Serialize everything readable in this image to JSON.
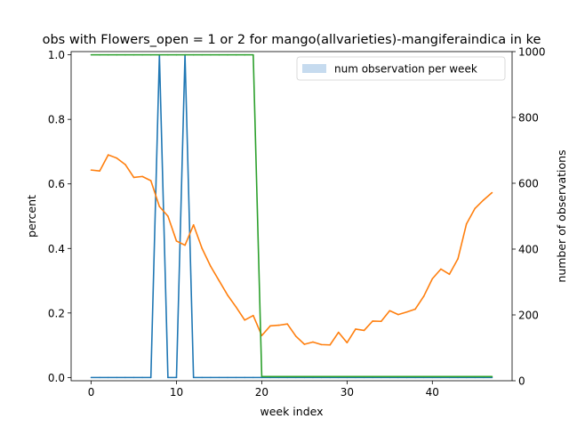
{
  "chart_data": {
    "type": "line",
    "title": "obs with Flowers_open = 1 or 2 for mango(allvarieties)-mangiferaindica in ke",
    "xlabel": "week index",
    "ylabel": "percent",
    "y2label": "number of observations",
    "xlim": [
      -2.35,
      49.35
    ],
    "ylim": [
      -0.01,
      1.01
    ],
    "y2lim": [
      0,
      1000
    ],
    "xticks": [
      0,
      10,
      20,
      30,
      40
    ],
    "yticks": [
      0.0,
      0.2,
      0.4,
      0.6,
      0.8,
      1.0
    ],
    "y2ticks": [
      0,
      200,
      400,
      600,
      800,
      1000
    ],
    "legend": {
      "label": "num observation per week",
      "position": "top-right"
    },
    "colors": {
      "blue": "#1f77b4",
      "orange": "#ff7f0e",
      "green": "#2ca02c",
      "legend_patch": "#c6dbef"
    },
    "series": [
      {
        "color": "#1f77b4",
        "x": [
          0,
          1,
          2,
          3,
          4,
          5,
          6,
          7,
          8,
          9,
          10,
          11,
          12,
          13,
          14,
          15,
          16,
          17,
          18,
          19,
          20,
          21,
          22,
          23,
          24,
          25,
          26,
          27,
          28,
          29,
          30,
          31,
          32,
          33,
          34,
          35,
          36,
          37,
          38,
          39,
          40,
          41,
          42,
          43,
          44,
          45,
          46,
          47
        ],
        "values": [
          0,
          0,
          0,
          0,
          0,
          0,
          0,
          0,
          1,
          0,
          0,
          1,
          0,
          0,
          0,
          0,
          0,
          0,
          0,
          0,
          0,
          0,
          0,
          0,
          0,
          0,
          0,
          0,
          0,
          0,
          0,
          0,
          0,
          0,
          0,
          0,
          0,
          0,
          0,
          0,
          0,
          0,
          0,
          0,
          0,
          0,
          0,
          0
        ]
      },
      {
        "color": "#ff7f0e",
        "x": [
          0,
          1,
          2,
          3,
          4,
          5,
          6,
          7,
          8,
          9,
          10,
          11,
          12,
          13,
          14,
          15,
          16,
          17,
          18,
          19,
          20,
          21,
          22,
          23,
          24,
          25,
          26,
          27,
          28,
          29,
          30,
          31,
          32,
          33,
          34,
          35,
          36,
          37,
          38,
          39,
          40,
          41,
          42,
          43,
          44,
          45,
          46,
          47
        ],
        "values": [
          0.643,
          0.64,
          0.69,
          0.68,
          0.66,
          0.62,
          0.623,
          0.61,
          0.53,
          0.5,
          0.423,
          0.41,
          0.473,
          0.4,
          0.345,
          0.3,
          0.255,
          0.218,
          0.178,
          0.192,
          0.13,
          0.16,
          0.162,
          0.166,
          0.128,
          0.103,
          0.11,
          0.102,
          0.101,
          0.14,
          0.108,
          0.15,
          0.146,
          0.175,
          0.174,
          0.207,
          0.195,
          0.203,
          0.212,
          0.252,
          0.306,
          0.336,
          0.32,
          0.368,
          0.476,
          0.524,
          0.55,
          0.573
        ]
      },
      {
        "color": "#2ca02c",
        "x": [
          0,
          1,
          2,
          3,
          4,
          5,
          6,
          7,
          8,
          9,
          10,
          11,
          12,
          13,
          14,
          15,
          16,
          17,
          18,
          19,
          20,
          21,
          22,
          23,
          24,
          25,
          26,
          27,
          28,
          29,
          30,
          31,
          32,
          33,
          34,
          35,
          36,
          37,
          38,
          39,
          40,
          41,
          42,
          43,
          44,
          45,
          46,
          47
        ],
        "values": [
          1,
          1,
          1,
          1,
          1,
          1,
          1,
          1,
          1,
          1,
          1,
          1,
          1,
          1,
          1,
          1,
          1,
          1,
          1,
          1,
          0.003,
          0.003,
          0.003,
          0.003,
          0.003,
          0.003,
          0.003,
          0.003,
          0.003,
          0.003,
          0.003,
          0.003,
          0.003,
          0.003,
          0.003,
          0.003,
          0.003,
          0.003,
          0.003,
          0.003,
          0.003,
          0.003,
          0.003,
          0.003,
          0.003,
          0.003,
          0.003,
          0.003
        ]
      }
    ]
  }
}
